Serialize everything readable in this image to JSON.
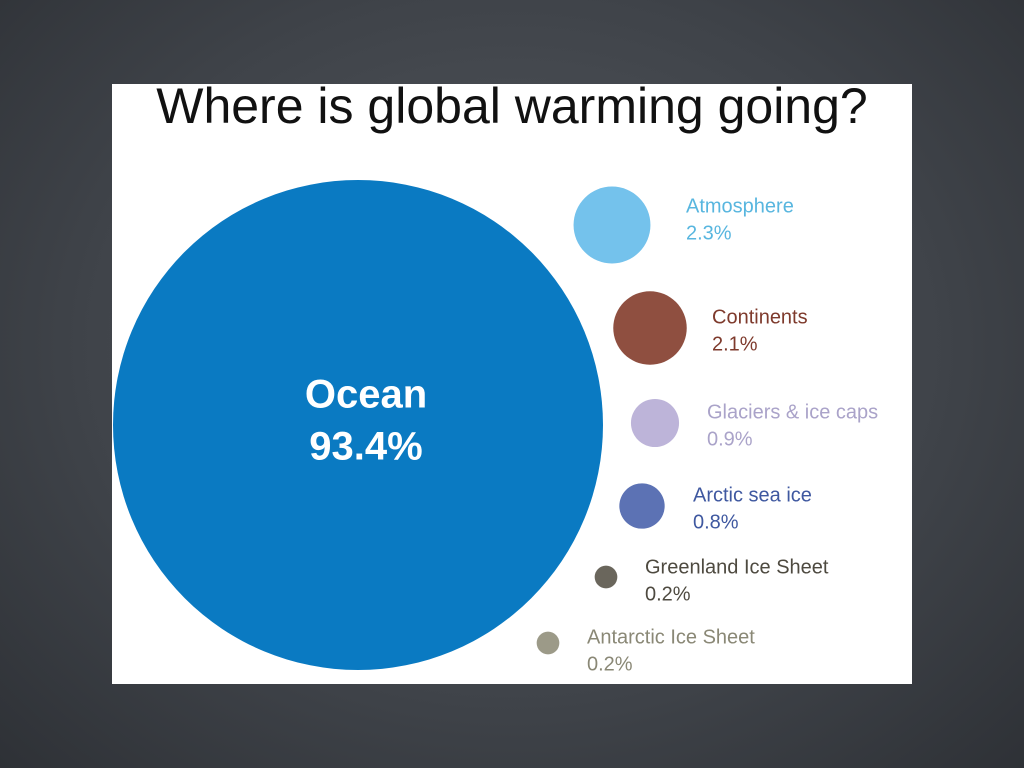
{
  "chart_data": {
    "type": "bubble",
    "title": "Where is global warming going?",
    "categories": [
      "Ocean",
      "Atmosphere",
      "Continents",
      "Glaciers & ice caps",
      "Arctic sea ice",
      "Greenland Ice Sheet",
      "Antarctic Ice Sheet"
    ],
    "values": [
      93.4,
      2.3,
      2.1,
      0.9,
      0.8,
      0.2,
      0.2
    ],
    "value_labels": [
      "93.4%",
      "2.3%",
      "2.1%",
      "0.9%",
      "0.8%",
      "0.2%",
      "0.2%"
    ],
    "colors": [
      "#0a7ac2",
      "#74c2ec",
      "#8f4f40",
      "#bdb4d9",
      "#5c72b4",
      "#6a665c",
      "#9c9a88"
    ],
    "label_colors": [
      "#ffffff",
      "#58b6df",
      "#7e3a2c",
      "#aaa3c9",
      "#3f58a0",
      "#4e4a40",
      "#8a8876"
    ]
  }
}
